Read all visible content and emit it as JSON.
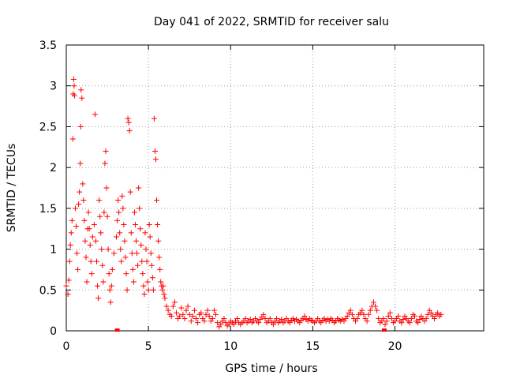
{
  "chart_data": {
    "type": "scatter",
    "title": "Day 041 of 2022, SRMTID for receiver salu",
    "xlabel": "GPS time / hours",
    "ylabel": "SRMTID / TECUs",
    "xlim": [
      0,
      25.4
    ],
    "ylim": [
      0,
      3.5
    ],
    "x_ticks": [
      0,
      5,
      10,
      15,
      20
    ],
    "x_tick_labels": [
      "0",
      "5",
      "10",
      "15",
      "20"
    ],
    "y_ticks": [
      0,
      0.5,
      1,
      1.5,
      2,
      2.5,
      3,
      3.5
    ],
    "y_tick_labels": [
      "0",
      "0.5",
      "1",
      "1.5",
      "2",
      "2.5",
      "3",
      "3.5"
    ],
    "grid": true,
    "grid_style": "dotted",
    "marker": "+",
    "colors": {
      "series": "#ff0000",
      "grid": "#a0a0a0",
      "axis": "#000000"
    },
    "series": [
      {
        "name": "SRMTID",
        "points": [
          [
            0.0,
            0.55
          ],
          [
            0.1,
            0.45
          ],
          [
            0.15,
            0.62
          ],
          [
            0.2,
            0.85
          ],
          [
            0.25,
            1.05
          ],
          [
            0.3,
            1.2
          ],
          [
            0.35,
            1.35
          ],
          [
            0.4,
            2.35
          ],
          [
            0.42,
            2.9
          ],
          [
            0.45,
            3.08
          ],
          [
            0.48,
            3.0
          ],
          [
            0.5,
            2.88
          ],
          [
            0.55,
            1.5
          ],
          [
            0.6,
            1.28
          ],
          [
            0.65,
            0.95
          ],
          [
            0.7,
            0.75
          ],
          [
            0.75,
            1.55
          ],
          [
            0.8,
            1.7
          ],
          [
            0.85,
            2.05
          ],
          [
            0.88,
            2.5
          ],
          [
            0.9,
            2.95
          ],
          [
            0.95,
            2.85
          ],
          [
            1.0,
            1.8
          ],
          [
            1.05,
            1.6
          ],
          [
            1.1,
            1.35
          ],
          [
            1.15,
            1.1
          ],
          [
            1.2,
            0.9
          ],
          [
            1.25,
            0.6
          ],
          [
            1.3,
            1.25
          ],
          [
            1.35,
            1.45
          ],
          [
            1.4,
            1.25
          ],
          [
            1.45,
            1.05
          ],
          [
            1.5,
            0.85
          ],
          [
            1.55,
            0.7
          ],
          [
            1.6,
            1.15
          ],
          [
            1.7,
            1.3
          ],
          [
            1.75,
            2.65
          ],
          [
            1.8,
            1.1
          ],
          [
            1.85,
            0.85
          ],
          [
            1.9,
            0.55
          ],
          [
            1.95,
            0.4
          ],
          [
            2.0,
            1.6
          ],
          [
            2.05,
            1.4
          ],
          [
            2.1,
            1.2
          ],
          [
            2.15,
            1.0
          ],
          [
            2.2,
            0.8
          ],
          [
            2.25,
            0.6
          ],
          [
            2.3,
            1.45
          ],
          [
            2.35,
            2.05
          ],
          [
            2.4,
            2.2
          ],
          [
            2.45,
            1.75
          ],
          [
            2.5,
            1.4
          ],
          [
            2.55,
            1.0
          ],
          [
            2.6,
            0.7
          ],
          [
            2.65,
            0.5
          ],
          [
            2.7,
            0.35
          ],
          [
            2.75,
            0.55
          ],
          [
            2.8,
            0.75
          ],
          [
            2.9,
            0.95
          ],
          [
            3.05,
            1.15
          ],
          [
            3.1,
            1.35
          ],
          [
            3.15,
            1.6
          ],
          [
            3.2,
            1.45
          ],
          [
            3.25,
            1.2
          ],
          [
            3.3,
            1.0
          ],
          [
            3.35,
            0.85
          ],
          [
            3.4,
            1.65
          ],
          [
            3.45,
            1.5
          ],
          [
            3.5,
            1.3
          ],
          [
            3.55,
            1.1
          ],
          [
            3.6,
            0.9
          ],
          [
            3.65,
            0.7
          ],
          [
            3.7,
            0.5
          ],
          [
            3.75,
            2.6
          ],
          [
            3.8,
            2.55
          ],
          [
            3.85,
            2.45
          ],
          [
            3.9,
            1.7
          ],
          [
            3.95,
            1.2
          ],
          [
            4.0,
            0.95
          ],
          [
            4.05,
            0.75
          ],
          [
            4.1,
            0.6
          ],
          [
            4.15,
            1.45
          ],
          [
            4.2,
            1.3
          ],
          [
            4.25,
            1.1
          ],
          [
            4.3,
            0.95
          ],
          [
            4.35,
            0.8
          ],
          [
            4.4,
            1.75
          ],
          [
            4.45,
            1.5
          ],
          [
            4.5,
            1.25
          ],
          [
            4.55,
            1.05
          ],
          [
            4.6,
            0.85
          ],
          [
            4.65,
            0.7
          ],
          [
            4.7,
            0.55
          ],
          [
            4.75,
            0.45
          ],
          [
            4.8,
            1.2
          ],
          [
            4.85,
            1.0
          ],
          [
            4.9,
            0.85
          ],
          [
            4.95,
            0.6
          ],
          [
            5.0,
            0.5
          ],
          [
            5.05,
            1.3
          ],
          [
            5.1,
            1.15
          ],
          [
            5.15,
            0.95
          ],
          [
            5.2,
            0.8
          ],
          [
            5.25,
            0.65
          ],
          [
            5.3,
            0.5
          ],
          [
            5.35,
            2.6
          ],
          [
            5.4,
            2.2
          ],
          [
            5.45,
            2.1
          ],
          [
            5.5,
            1.6
          ],
          [
            5.55,
            1.3
          ],
          [
            5.6,
            1.1
          ],
          [
            5.65,
            0.9
          ],
          [
            5.7,
            0.75
          ],
          [
            5.75,
            0.6
          ],
          [
            5.8,
            0.55
          ],
          [
            5.85,
            0.5
          ],
          [
            5.9,
            0.55
          ],
          [
            5.95,
            0.45
          ],
          [
            6.0,
            0.4
          ],
          [
            6.1,
            0.3
          ],
          [
            6.2,
            0.25
          ],
          [
            6.3,
            0.2
          ],
          [
            6.4,
            0.18
          ],
          [
            6.5,
            0.3
          ],
          [
            6.6,
            0.35
          ],
          [
            6.7,
            0.22
          ],
          [
            6.8,
            0.15
          ],
          [
            6.9,
            0.18
          ],
          [
            7.0,
            0.28
          ],
          [
            7.1,
            0.2
          ],
          [
            7.2,
            0.15
          ],
          [
            7.3,
            0.25
          ],
          [
            7.4,
            0.3
          ],
          [
            7.5,
            0.2
          ],
          [
            7.6,
            0.12
          ],
          [
            7.7,
            0.18
          ],
          [
            7.8,
            0.25
          ],
          [
            7.9,
            0.15
          ],
          [
            8.0,
            0.1
          ],
          [
            8.1,
            0.2
          ],
          [
            8.2,
            0.22
          ],
          [
            8.3,
            0.15
          ],
          [
            8.4,
            0.12
          ],
          [
            8.5,
            0.2
          ],
          [
            8.6,
            0.25
          ],
          [
            8.7,
            0.18
          ],
          [
            8.8,
            0.12
          ],
          [
            8.9,
            0.15
          ],
          [
            9.0,
            0.25
          ],
          [
            9.1,
            0.2
          ],
          [
            9.2,
            0.1
          ],
          [
            9.3,
            0.05
          ],
          [
            9.4,
            0.08
          ],
          [
            9.5,
            0.12
          ],
          [
            9.6,
            0.15
          ],
          [
            9.7,
            0.1
          ],
          [
            9.8,
            0.06
          ],
          [
            9.9,
            0.08
          ],
          [
            10.0,
            0.12
          ],
          [
            10.1,
            0.1
          ],
          [
            10.2,
            0.08
          ],
          [
            10.3,
            0.12
          ],
          [
            10.4,
            0.15
          ],
          [
            10.5,
            0.1
          ],
          [
            10.6,
            0.08
          ],
          [
            10.7,
            0.1
          ],
          [
            10.8,
            0.12
          ],
          [
            10.9,
            0.15
          ],
          [
            11.0,
            0.1
          ],
          [
            11.1,
            0.12
          ],
          [
            11.2,
            0.14
          ],
          [
            11.3,
            0.1
          ],
          [
            11.4,
            0.12
          ],
          [
            11.5,
            0.15
          ],
          [
            11.6,
            0.12
          ],
          [
            11.7,
            0.1
          ],
          [
            11.8,
            0.14
          ],
          [
            11.9,
            0.17
          ],
          [
            12.0,
            0.2
          ],
          [
            12.1,
            0.15
          ],
          [
            12.2,
            0.1
          ],
          [
            12.3,
            0.12
          ],
          [
            12.4,
            0.15
          ],
          [
            12.5,
            0.1
          ],
          [
            12.6,
            0.08
          ],
          [
            12.7,
            0.12
          ],
          [
            12.8,
            0.15
          ],
          [
            12.9,
            0.1
          ],
          [
            13.0,
            0.12
          ],
          [
            13.1,
            0.14
          ],
          [
            13.2,
            0.1
          ],
          [
            13.3,
            0.12
          ],
          [
            13.4,
            0.15
          ],
          [
            13.5,
            0.12
          ],
          [
            13.6,
            0.1
          ],
          [
            13.7,
            0.13
          ],
          [
            13.8,
            0.15
          ],
          [
            13.9,
            0.12
          ],
          [
            14.0,
            0.14
          ],
          [
            14.1,
            0.12
          ],
          [
            14.2,
            0.1
          ],
          [
            14.3,
            0.13
          ],
          [
            14.4,
            0.15
          ],
          [
            14.5,
            0.18
          ],
          [
            14.6,
            0.14
          ],
          [
            14.7,
            0.12
          ],
          [
            14.8,
            0.15
          ],
          [
            14.9,
            0.13
          ],
          [
            15.0,
            0.12
          ],
          [
            15.1,
            0.1
          ],
          [
            15.2,
            0.12
          ],
          [
            15.3,
            0.15
          ],
          [
            15.4,
            0.12
          ],
          [
            15.5,
            0.1
          ],
          [
            15.6,
            0.13
          ],
          [
            15.7,
            0.15
          ],
          [
            15.8,
            0.12
          ],
          [
            15.9,
            0.14
          ],
          [
            16.0,
            0.12
          ],
          [
            16.1,
            0.15
          ],
          [
            16.2,
            0.13
          ],
          [
            16.3,
            0.1
          ],
          [
            16.4,
            0.12
          ],
          [
            16.5,
            0.15
          ],
          [
            16.6,
            0.13
          ],
          [
            16.7,
            0.12
          ],
          [
            16.8,
            0.14
          ],
          [
            16.9,
            0.12
          ],
          [
            17.0,
            0.15
          ],
          [
            17.1,
            0.18
          ],
          [
            17.2,
            0.22
          ],
          [
            17.3,
            0.25
          ],
          [
            17.4,
            0.2
          ],
          [
            17.5,
            0.15
          ],
          [
            17.6,
            0.12
          ],
          [
            17.7,
            0.15
          ],
          [
            17.8,
            0.2
          ],
          [
            17.9,
            0.22
          ],
          [
            18.0,
            0.25
          ],
          [
            18.1,
            0.2
          ],
          [
            18.2,
            0.15
          ],
          [
            18.3,
            0.12
          ],
          [
            18.4,
            0.2
          ],
          [
            18.5,
            0.25
          ],
          [
            18.6,
            0.3
          ],
          [
            18.7,
            0.35
          ],
          [
            18.8,
            0.3
          ],
          [
            18.9,
            0.25
          ],
          [
            19.0,
            0.15
          ],
          [
            19.1,
            0.1
          ],
          [
            19.2,
            0.12
          ],
          [
            19.3,
            0.15
          ],
          [
            19.4,
            0.08
          ],
          [
            19.5,
            0.12
          ],
          [
            19.6,
            0.18
          ],
          [
            19.7,
            0.22
          ],
          [
            19.8,
            0.15
          ],
          [
            19.9,
            0.1
          ],
          [
            20.0,
            0.12
          ],
          [
            20.1,
            0.15
          ],
          [
            20.2,
            0.18
          ],
          [
            20.3,
            0.12
          ],
          [
            20.4,
            0.1
          ],
          [
            20.5,
            0.14
          ],
          [
            20.6,
            0.18
          ],
          [
            20.7,
            0.15
          ],
          [
            20.8,
            0.12
          ],
          [
            20.9,
            0.1
          ],
          [
            21.0,
            0.15
          ],
          [
            21.1,
            0.2
          ],
          [
            21.2,
            0.18
          ],
          [
            21.3,
            0.12
          ],
          [
            21.4,
            0.1
          ],
          [
            21.5,
            0.14
          ],
          [
            21.6,
            0.18
          ],
          [
            21.7,
            0.15
          ],
          [
            21.8,
            0.12
          ],
          [
            21.9,
            0.15
          ],
          [
            22.0,
            0.2
          ],
          [
            22.1,
            0.25
          ],
          [
            22.2,
            0.22
          ],
          [
            22.3,
            0.18
          ],
          [
            22.4,
            0.15
          ],
          [
            22.5,
            0.2
          ],
          [
            22.6,
            0.22
          ],
          [
            22.7,
            0.18
          ],
          [
            22.8,
            0.2
          ]
        ]
      }
    ],
    "isolated_markers": [
      [
        3.1,
        0.0
      ],
      [
        19.35,
        0.0
      ]
    ]
  }
}
